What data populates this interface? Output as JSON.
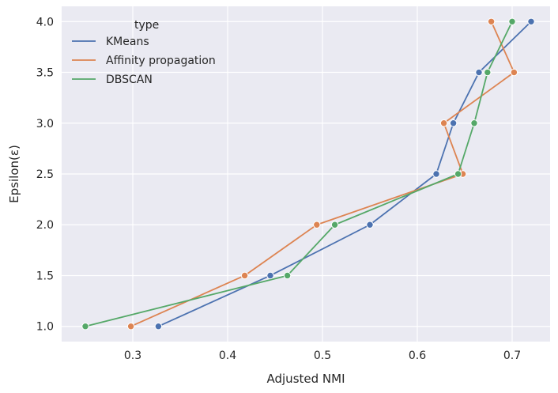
{
  "chart_data": {
    "type": "line",
    "xlabel": "Adjusted NMI",
    "ylabel": "Epsilon(ε)",
    "xlim": [
      0.225,
      0.74
    ],
    "ylim": [
      0.85,
      4.15
    ],
    "xticks": [
      0.3,
      0.4,
      0.5,
      0.6,
      0.7
    ],
    "yticks": [
      1.0,
      1.5,
      2.0,
      2.5,
      3.0,
      3.5,
      4.0
    ],
    "xtick_labels": [
      "0.3",
      "0.4",
      "0.5",
      "0.6",
      "0.7"
    ],
    "ytick_labels": [
      "1.0",
      "1.5",
      "2.0",
      "2.5",
      "3.0",
      "3.5",
      "4.0"
    ],
    "grid": true,
    "background": "#eaeaf2",
    "legend": {
      "title": "type",
      "placement": "upper-left"
    },
    "series": [
      {
        "name": "KMeans",
        "color": "#4c72b0",
        "points": [
          {
            "x": 0.327,
            "y": 1.0
          },
          {
            "x": 0.445,
            "y": 1.5
          },
          {
            "x": 0.55,
            "y": 2.0
          },
          {
            "x": 0.62,
            "y": 2.5
          },
          {
            "x": 0.638,
            "y": 3.0
          },
          {
            "x": 0.665,
            "y": 3.5
          },
          {
            "x": 0.72,
            "y": 4.0
          }
        ]
      },
      {
        "name": "Affinity propagation",
        "color": "#dd8452",
        "points": [
          {
            "x": 0.298,
            "y": 1.0
          },
          {
            "x": 0.418,
            "y": 1.5
          },
          {
            "x": 0.494,
            "y": 2.0
          },
          {
            "x": 0.648,
            "y": 2.5
          },
          {
            "x": 0.628,
            "y": 3.0
          },
          {
            "x": 0.702,
            "y": 3.5
          },
          {
            "x": 0.678,
            "y": 4.0
          }
        ]
      },
      {
        "name": "DBSCAN",
        "color": "#55a868",
        "points": [
          {
            "x": 0.25,
            "y": 1.0
          },
          {
            "x": 0.463,
            "y": 1.5
          },
          {
            "x": 0.513,
            "y": 2.0
          },
          {
            "x": 0.643,
            "y": 2.5
          },
          {
            "x": 0.66,
            "y": 3.0
          },
          {
            "x": 0.674,
            "y": 3.5
          },
          {
            "x": 0.7,
            "y": 4.0
          }
        ]
      }
    ]
  }
}
